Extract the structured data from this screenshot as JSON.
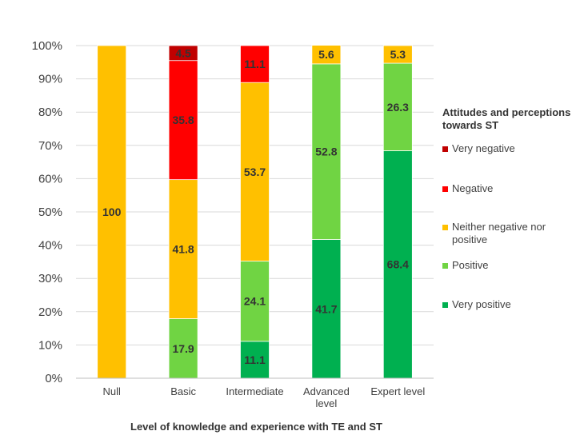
{
  "chart_data": {
    "type": "bar",
    "stacked": true,
    "categories": [
      "Null",
      "Basic",
      "Intermediate",
      "Advanced level",
      "Expert level"
    ],
    "series": [
      {
        "name": "Very positive",
        "color": "#00B050",
        "values": [
          0,
          0,
          11.1,
          41.7,
          68.4
        ]
      },
      {
        "name": "Positive",
        "color": "#70D443",
        "values": [
          0,
          17.9,
          24.1,
          52.8,
          26.3
        ]
      },
      {
        "name": "Neither negative nor positive",
        "color": "#FFC000",
        "values": [
          100,
          41.8,
          53.7,
          5.6,
          5.3
        ]
      },
      {
        "name": "Negative",
        "color": "#FF0000",
        "values": [
          0,
          35.8,
          11.1,
          0,
          0
        ]
      },
      {
        "name": "Very negative",
        "color": "#C00000",
        "values": [
          0,
          4.5,
          0,
          0,
          0
        ]
      }
    ],
    "xlabel": "Level of knowledge and experience with TE and ST",
    "ylabel": "",
    "ylim": [
      0,
      100
    ],
    "yticks": [
      "0%",
      "10%",
      "20%",
      "30%",
      "40%",
      "50%",
      "60%",
      "70%",
      "80%",
      "90%",
      "100%"
    ],
    "grid": true,
    "legend": {
      "title": "Attitudes and perceptions towards ST",
      "position": "right",
      "order": [
        "Very negative",
        "Negative",
        "Neither negative nor positive",
        "Positive",
        "Very positive"
      ]
    }
  }
}
